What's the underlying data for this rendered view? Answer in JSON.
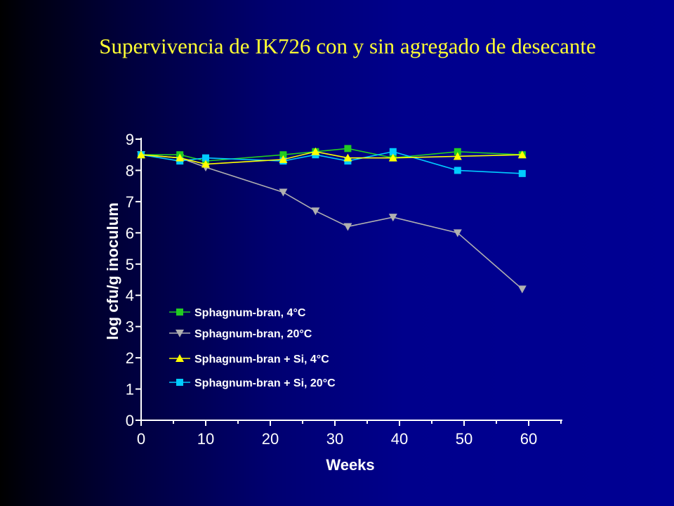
{
  "slide": {
    "title": "Supervivencia de IK726 con y sin agregado de desecante"
  },
  "chart_data": {
    "type": "line",
    "title": "Supervivencia de IK726 con y sin agregado de desecante",
    "xlabel": "Weeks",
    "ylabel": "log cfu/g inoculum",
    "xlim": [
      0,
      65
    ],
    "ylim": [
      0,
      9
    ],
    "xticks": [
      "0",
      "10",
      "20",
      "30",
      "40",
      "50",
      "60"
    ],
    "yticks": [
      "0",
      "1",
      "2",
      "3",
      "4",
      "5",
      "6",
      "7",
      "8",
      "9"
    ],
    "grid": false,
    "legend_position": "bottom-left",
    "series": [
      {
        "name": "Sphagnum-bran, 4°C",
        "color": "#22cc22",
        "marker": "square",
        "x": [
          0,
          6,
          10,
          22,
          27,
          32,
          39,
          49,
          59
        ],
        "y": [
          8.5,
          8.5,
          8.3,
          8.5,
          8.6,
          8.7,
          8.4,
          8.6,
          8.5
        ]
      },
      {
        "name": "Sphagnum-bran, 20°C",
        "color": "#b0b0b0",
        "marker": "triangle-down",
        "x": [
          0,
          6,
          10,
          22,
          27,
          32,
          39,
          49,
          59
        ],
        "y": [
          8.5,
          8.4,
          8.1,
          7.3,
          6.7,
          6.2,
          6.5,
          6.0,
          4.2
        ]
      },
      {
        "name": "Sphagnum-bran + Si, 4°C",
        "color": "#ffff00",
        "marker": "triangle-up",
        "x": [
          0,
          6,
          10,
          22,
          27,
          32,
          39,
          49,
          59
        ],
        "y": [
          8.5,
          8.4,
          8.2,
          8.35,
          8.6,
          8.4,
          8.4,
          8.45,
          8.5
        ]
      },
      {
        "name": "Sphagnum-bran + Si, 20°C",
        "color": "#00ccff",
        "marker": "square",
        "x": [
          0,
          6,
          10,
          22,
          27,
          32,
          39,
          49,
          59
        ],
        "y": [
          8.5,
          8.3,
          8.4,
          8.3,
          8.5,
          8.3,
          8.6,
          8.0,
          7.9
        ]
      }
    ]
  }
}
